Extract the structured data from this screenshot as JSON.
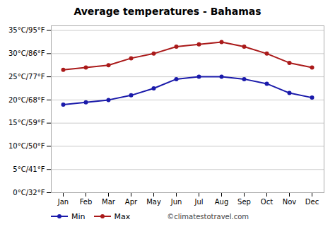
{
  "chart_data": {
    "type": "line",
    "title": "Average temperatures - Bahamas",
    "categories": [
      "Jan",
      "Feb",
      "Mar",
      "Apr",
      "May",
      "Jun",
      "Jul",
      "Aug",
      "Sep",
      "Oct",
      "Nov",
      "Dec"
    ],
    "series": [
      {
        "name": "Min",
        "color": "#1a1aaa",
        "marker": "circle",
        "values": [
          19,
          19.5,
          20,
          21,
          22.5,
          24.5,
          25,
          25,
          24.5,
          23.5,
          21.5,
          20.5
        ]
      },
      {
        "name": "Max",
        "color": "#aa1a1a",
        "marker": "circle",
        "values": [
          26.5,
          27,
          27.5,
          29,
          30,
          31.5,
          32,
          32.5,
          31.5,
          30,
          28,
          27
        ]
      }
    ],
    "ylim": [
      0,
      36
    ],
    "yticks": [
      {
        "value": 0,
        "label": "0°C/32°F"
      },
      {
        "value": 5,
        "label": "5°C/41°F"
      },
      {
        "value": 10,
        "label": "10°C/50°F"
      },
      {
        "value": 15,
        "label": "15°C/59°F"
      },
      {
        "value": 20,
        "label": "20°C/68°F"
      },
      {
        "value": 25,
        "label": "25°C/77°F"
      },
      {
        "value": 30,
        "label": "30°C/86°F"
      },
      {
        "value": 35,
        "label": "35°C/95°F"
      }
    ],
    "grid": true,
    "legend": "bottom",
    "annotations": [
      "©climatestotravel.com"
    ]
  }
}
